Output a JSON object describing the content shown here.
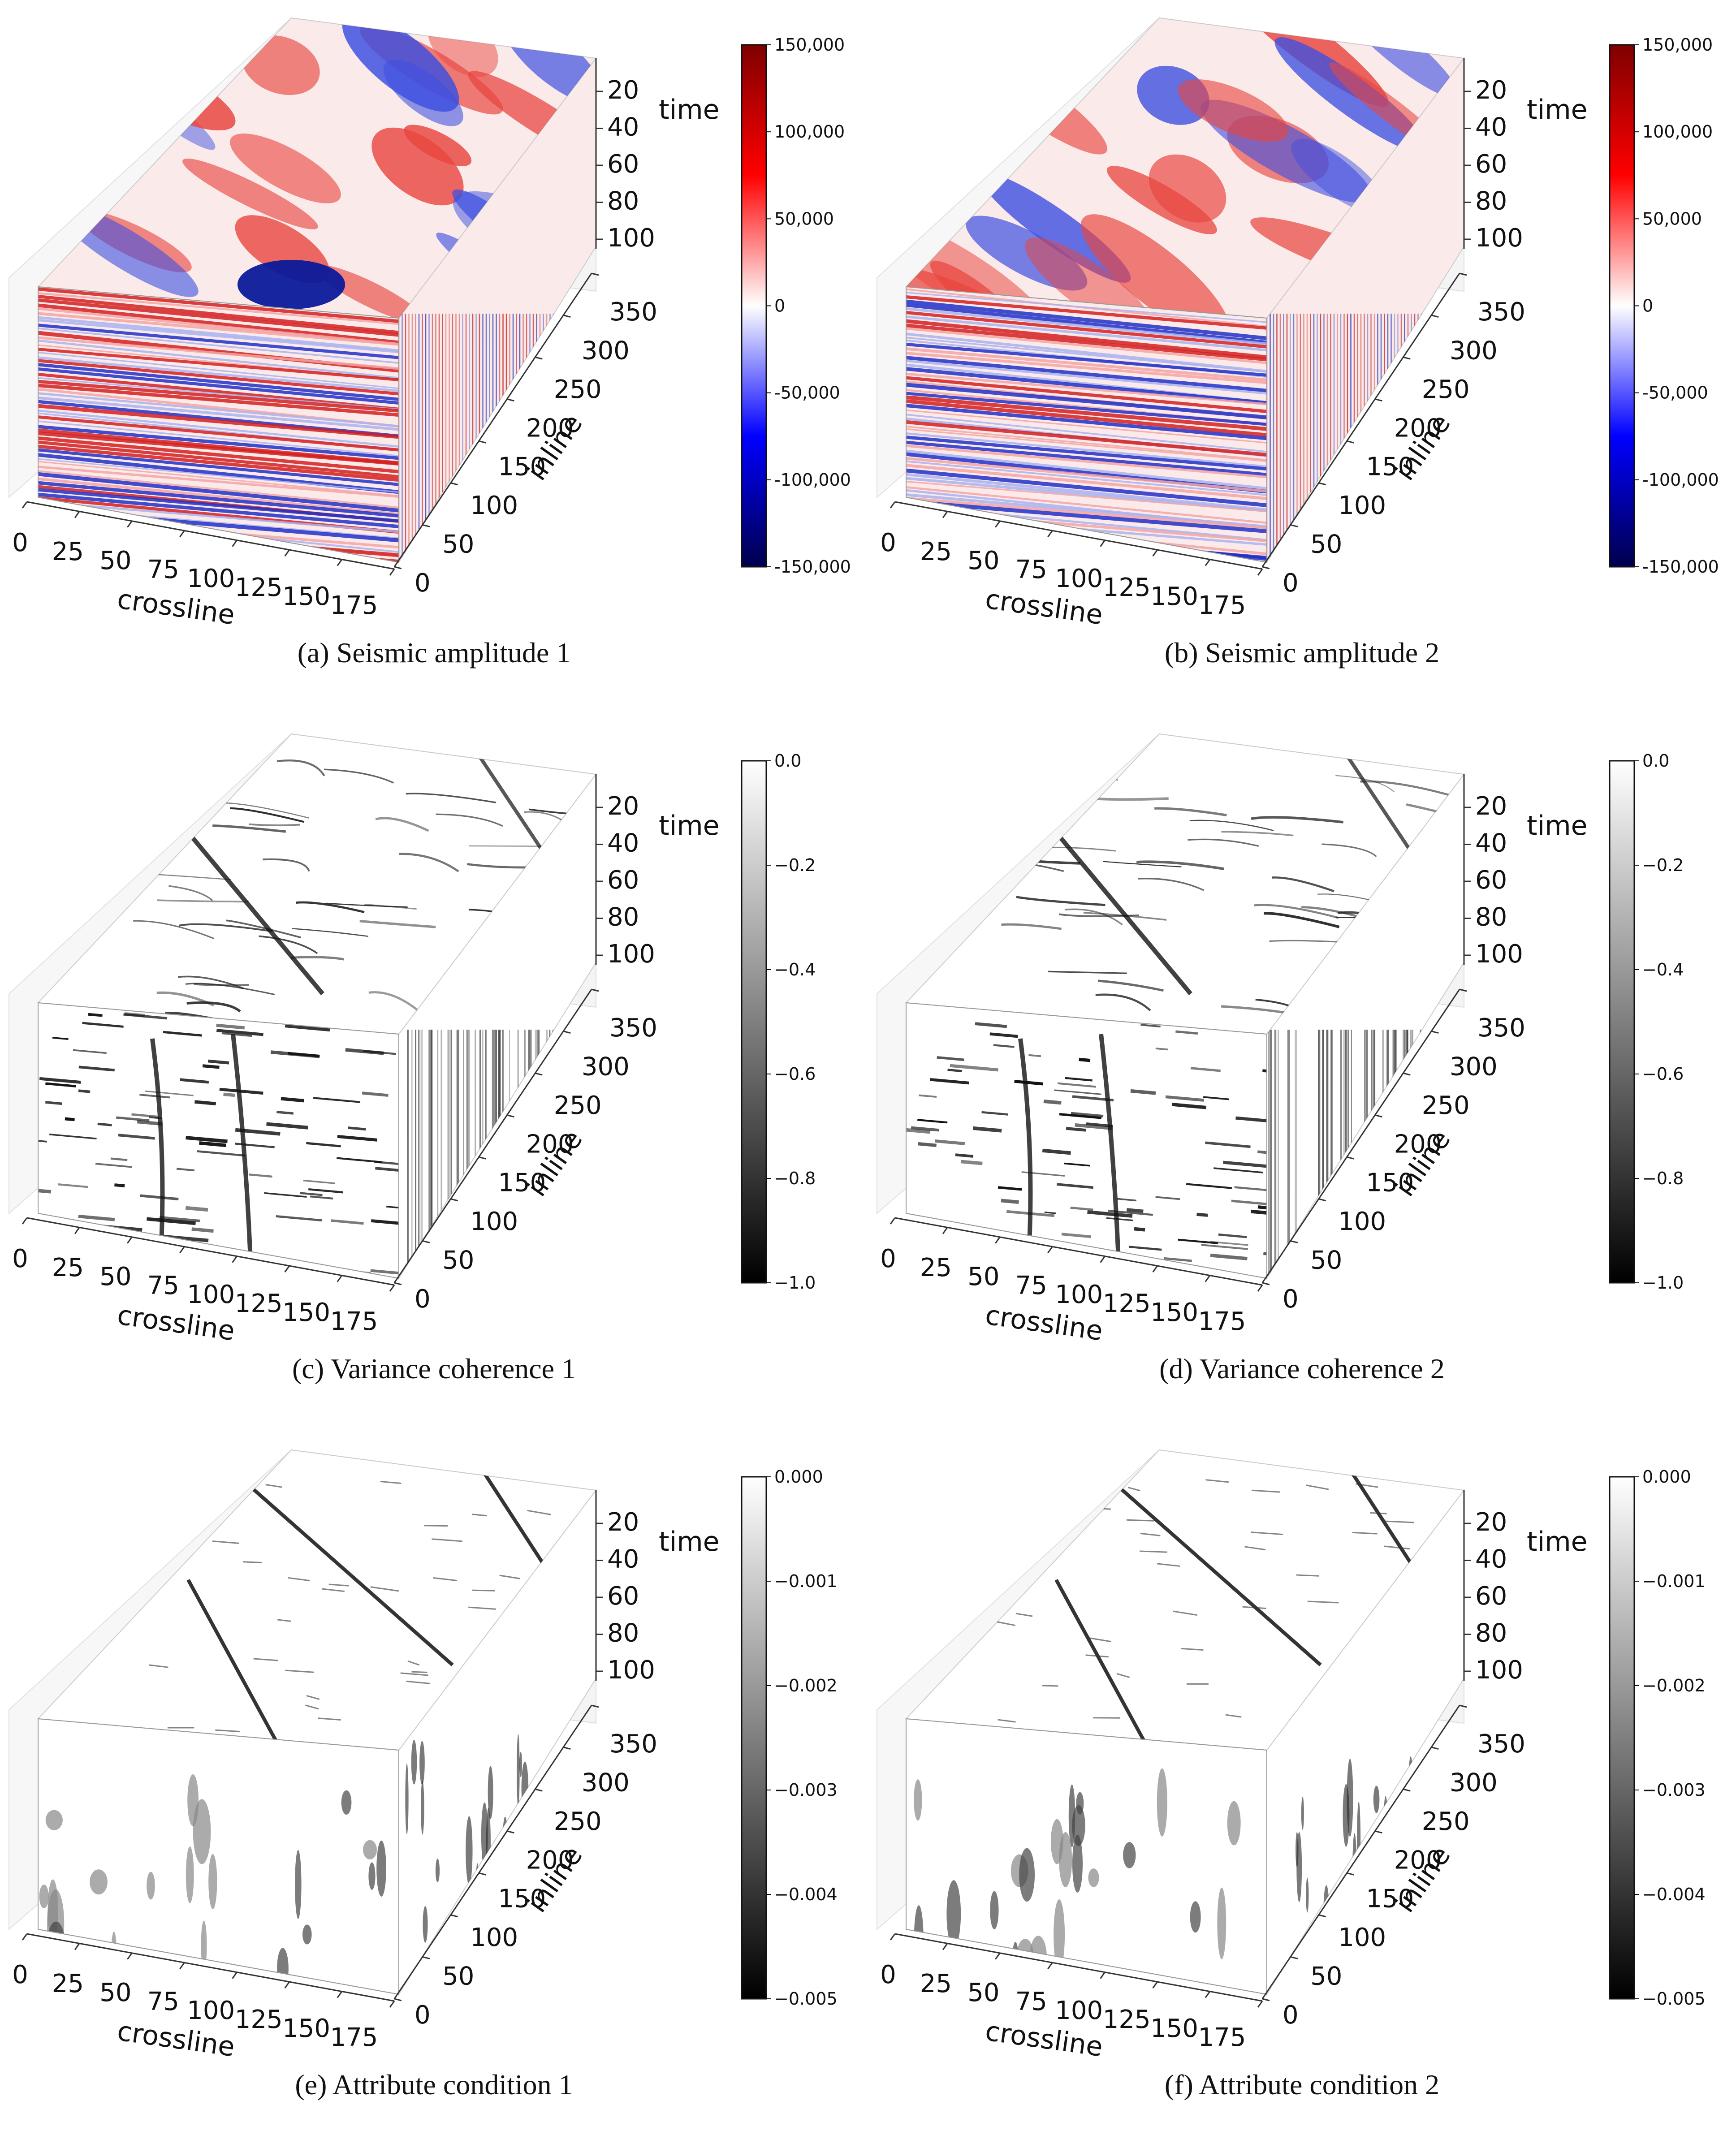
{
  "chart_data": [
    {
      "type": "heatmap",
      "caption": "(a) Seismic amplitude 1",
      "xlabel": "crossline",
      "ylabel": "inline",
      "zlabel": "time",
      "xticks": [
        "0",
        "25",
        "50",
        "75",
        "100",
        "125",
        "150",
        "175"
      ],
      "yticks": [
        "0",
        "50",
        "100",
        "150",
        "200",
        "250",
        "300",
        "350"
      ],
      "zticks": [
        "20",
        "40",
        "60",
        "80",
        "100"
      ],
      "colorbar": {
        "ticks": [
          "150,000",
          "100,000",
          "50,000",
          "0",
          "-50,000",
          "-100,000",
          "-150,000"
        ],
        "range": [
          -150000,
          150000
        ],
        "colormap": "seismic"
      },
      "style": "amp"
    },
    {
      "type": "heatmap",
      "caption": "(b) Seismic amplitude 2",
      "xlabel": "crossline",
      "ylabel": "inline",
      "zlabel": "time",
      "xticks": [
        "0",
        "25",
        "50",
        "75",
        "100",
        "125",
        "150",
        "175"
      ],
      "yticks": [
        "0",
        "50",
        "100",
        "150",
        "200",
        "250",
        "300",
        "350"
      ],
      "zticks": [
        "20",
        "40",
        "60",
        "80",
        "100"
      ],
      "colorbar": {
        "ticks": [
          "150,000",
          "100,000",
          "50,000",
          "0",
          "-50,000",
          "-100,000",
          "-150,000"
        ],
        "range": [
          -150000,
          150000
        ],
        "colormap": "seismic"
      },
      "style": "amp"
    },
    {
      "type": "heatmap",
      "caption": "(c) Variance coherence 1",
      "xlabel": "crossline",
      "ylabel": "inline",
      "zlabel": "time",
      "xticks": [
        "0",
        "25",
        "50",
        "75",
        "100",
        "125",
        "150",
        "175"
      ],
      "yticks": [
        "0",
        "50",
        "100",
        "150",
        "200",
        "250",
        "300",
        "350"
      ],
      "zticks": [
        "20",
        "40",
        "60",
        "80",
        "100"
      ],
      "colorbar": {
        "ticks": [
          "0.0",
          "−0.2",
          "−0.4",
          "−0.6",
          "−0.8",
          "−1.0"
        ],
        "range": [
          -1.0,
          0.0
        ],
        "colormap": "gray"
      },
      "style": "var"
    },
    {
      "type": "heatmap",
      "caption": "(d) Variance coherence 2",
      "xlabel": "crossline",
      "ylabel": "inline",
      "zlabel": "time",
      "xticks": [
        "0",
        "25",
        "50",
        "75",
        "100",
        "125",
        "150",
        "175"
      ],
      "yticks": [
        "0",
        "50",
        "100",
        "150",
        "200",
        "250",
        "300",
        "350"
      ],
      "zticks": [
        "20",
        "40",
        "60",
        "80",
        "100"
      ],
      "colorbar": {
        "ticks": [
          "0.0",
          "−0.2",
          "−0.4",
          "−0.6",
          "−0.8",
          "−1.0"
        ],
        "range": [
          -1.0,
          0.0
        ],
        "colormap": "gray"
      },
      "style": "var"
    },
    {
      "type": "heatmap",
      "caption": "(e) Attribute condition 1",
      "xlabel": "crossline",
      "ylabel": "inline",
      "zlabel": "time",
      "xticks": [
        "0",
        "25",
        "50",
        "75",
        "100",
        "125",
        "150",
        "175"
      ],
      "yticks": [
        "0",
        "50",
        "100",
        "150",
        "200",
        "250",
        "300",
        "350"
      ],
      "zticks": [
        "20",
        "40",
        "60",
        "80",
        "100"
      ],
      "colorbar": {
        "ticks": [
          "0.000",
          "−0.001",
          "−0.002",
          "−0.003",
          "−0.004",
          "−0.005"
        ],
        "range": [
          -0.005,
          0.0
        ],
        "colormap": "gray"
      },
      "style": "attr"
    },
    {
      "type": "heatmap",
      "caption": "(f) Attribute condition 2",
      "xlabel": "crossline",
      "ylabel": "inline",
      "zlabel": "time",
      "xticks": [
        "0",
        "25",
        "50",
        "75",
        "100",
        "125",
        "150",
        "175"
      ],
      "yticks": [
        "0",
        "50",
        "100",
        "150",
        "200",
        "250",
        "300",
        "350"
      ],
      "zticks": [
        "20",
        "40",
        "60",
        "80",
        "100"
      ],
      "colorbar": {
        "ticks": [
          "0.000",
          "−0.001",
          "−0.002",
          "−0.003",
          "−0.004",
          "−0.005"
        ],
        "range": [
          -0.005,
          0.0
        ],
        "colormap": "gray"
      },
      "style": "attr"
    }
  ],
  "colors": {
    "seismic_high": "#7f0000",
    "seismic_pos": "#ff0000",
    "seismic_zero": "#ffffff",
    "seismic_neg": "#0000ff",
    "seismic_low": "#00004c",
    "gray_high": "#ffffff",
    "gray_low": "#000000"
  }
}
